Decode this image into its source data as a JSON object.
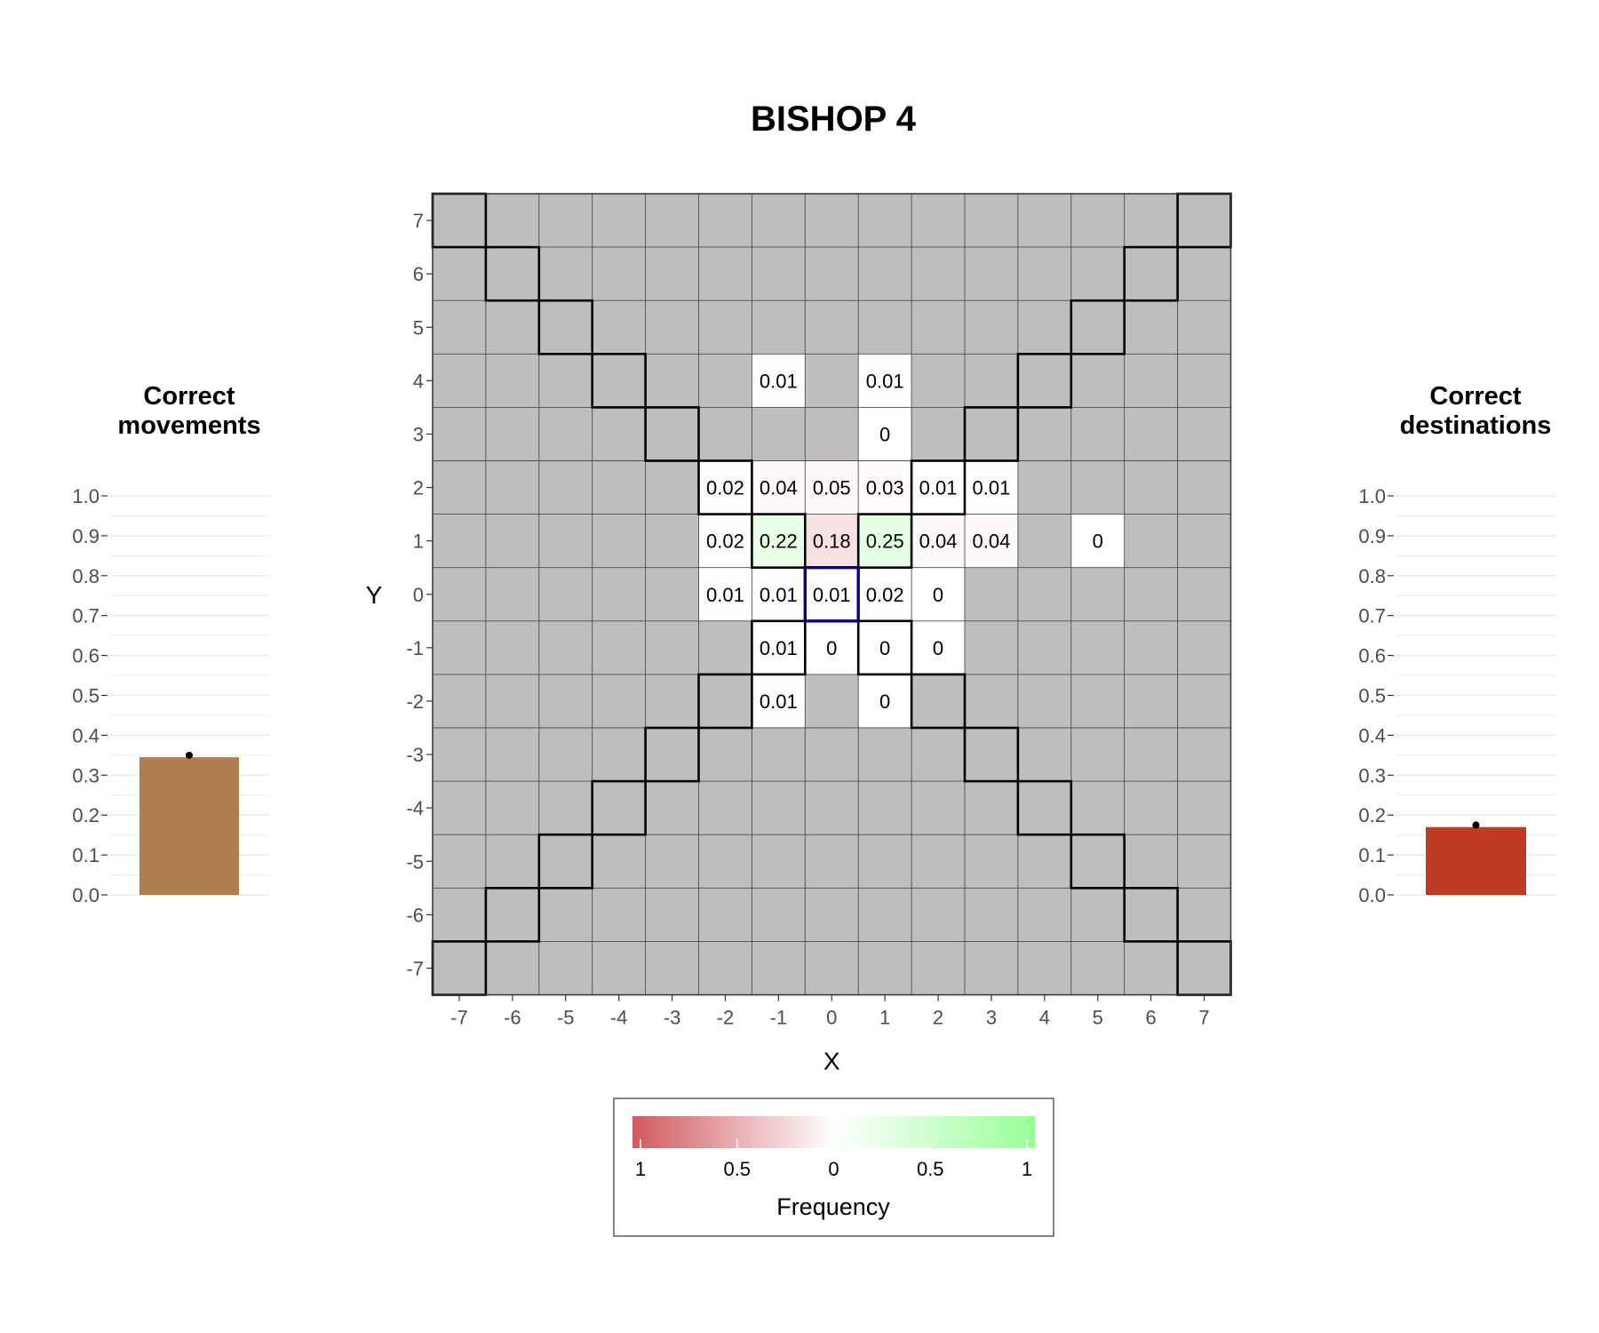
{
  "title": "BISHOP 4",
  "chart_data": [
    {
      "type": "heatmap",
      "piece": "BISHOP 4",
      "xlabel": "X",
      "ylabel": "Y",
      "x_ticks": [
        "-7",
        "-6",
        "-5",
        "-4",
        "-3",
        "-2",
        "-1",
        "0",
        "1",
        "2",
        "3",
        "4",
        "5",
        "6",
        "7"
      ],
      "y_ticks": [
        "-7",
        "-6",
        "-5",
        "-4",
        "-3",
        "-2",
        "-1",
        "0",
        "1",
        "2",
        "3",
        "4",
        "5",
        "6",
        "7"
      ],
      "xlim": [
        -7,
        7
      ],
      "ylim": [
        -7,
        7
      ],
      "background_color": "#bebebe",
      "origin_cell": {
        "x": 0,
        "y": 0,
        "outline_color": "#00008b"
      },
      "cells": [
        {
          "x": -1,
          "y": 4,
          "value": 0.01,
          "label": "0.01",
          "correct": false
        },
        {
          "x": 1,
          "y": 4,
          "value": 0.01,
          "label": "0.01",
          "correct": false
        },
        {
          "x": 1,
          "y": 3,
          "value": 0.002,
          "label": "0",
          "correct": false
        },
        {
          "x": -2,
          "y": 2,
          "value": 0.02,
          "label": "0.02",
          "correct": true
        },
        {
          "x": -1,
          "y": 2,
          "value": 0.04,
          "label": "0.04",
          "correct": false
        },
        {
          "x": 0,
          "y": 2,
          "value": 0.05,
          "label": "0.05",
          "correct": false
        },
        {
          "x": 1,
          "y": 2,
          "value": 0.03,
          "label": "0.03",
          "correct": false
        },
        {
          "x": 2,
          "y": 2,
          "value": 0.01,
          "label": "0.01",
          "correct": true
        },
        {
          "x": 3,
          "y": 2,
          "value": 0.01,
          "label": "0.01",
          "correct": false
        },
        {
          "x": -2,
          "y": 1,
          "value": 0.02,
          "label": "0.02",
          "correct": false
        },
        {
          "x": -1,
          "y": 1,
          "value": 0.22,
          "label": "0.22",
          "correct": true
        },
        {
          "x": 0,
          "y": 1,
          "value": 0.18,
          "label": "0.18",
          "correct": false
        },
        {
          "x": 1,
          "y": 1,
          "value": 0.25,
          "label": "0.25",
          "correct": true
        },
        {
          "x": 2,
          "y": 1,
          "value": 0.04,
          "label": "0.04",
          "correct": false
        },
        {
          "x": 3,
          "y": 1,
          "value": 0.04,
          "label": "0.04",
          "correct": false
        },
        {
          "x": 5,
          "y": 1,
          "value": 0.002,
          "label": "0",
          "correct": false
        },
        {
          "x": -2,
          "y": 0,
          "value": 0.01,
          "label": "0.01",
          "correct": false
        },
        {
          "x": -1,
          "y": 0,
          "value": 0.01,
          "label": "0.01",
          "correct": false
        },
        {
          "x": 0,
          "y": 0,
          "value": 0.01,
          "label": "0.01",
          "correct": false
        },
        {
          "x": 1,
          "y": 0,
          "value": 0.02,
          "label": "0.02",
          "correct": false
        },
        {
          "x": 2,
          "y": 0,
          "value": 0.003,
          "label": "0",
          "correct": false
        },
        {
          "x": -1,
          "y": -1,
          "value": 0.01,
          "label": "0.01",
          "correct": true
        },
        {
          "x": 0,
          "y": -1,
          "value": 0.003,
          "label": "0",
          "correct": false
        },
        {
          "x": 1,
          "y": -1,
          "value": 0.002,
          "label": "0",
          "correct": true
        },
        {
          "x": 2,
          "y": -1,
          "value": 0.003,
          "label": "0",
          "correct": false
        },
        {
          "x": -1,
          "y": -2,
          "value": 0.01,
          "label": "0.01",
          "correct": false
        },
        {
          "x": 1,
          "y": -2,
          "value": 0.003,
          "label": "0",
          "correct": false
        }
      ],
      "color_scale": {
        "incorrect_color": "#d0595f",
        "neutral_color": "#ffffff",
        "correct_color": "#98ff98"
      }
    },
    {
      "type": "bar",
      "title": "Correct\nmovements",
      "title_lines": [
        "Correct",
        "movements"
      ],
      "values": [
        0.345
      ],
      "point": 0.35,
      "color": "#b07d4e",
      "ylim": [
        0,
        1
      ],
      "y_ticks": [
        "0.0",
        "0.1",
        "0.2",
        "0.3",
        "0.4",
        "0.5",
        "0.6",
        "0.7",
        "0.8",
        "0.9",
        "1.0"
      ]
    },
    {
      "type": "bar",
      "title": "Correct\ndestinations",
      "title_lines": [
        "Correct",
        "destinations"
      ],
      "values": [
        0.17
      ],
      "point": 0.175,
      "color": "#c03a22",
      "ylim": [
        0,
        1
      ],
      "y_ticks": [
        "0.0",
        "0.1",
        "0.2",
        "0.3",
        "0.4",
        "0.5",
        "0.6",
        "0.7",
        "0.8",
        "0.9",
        "1.0"
      ]
    }
  ],
  "legend": {
    "title": "Frequency",
    "ticks": [
      "1",
      "0.5",
      "0",
      "0.5",
      "1"
    ],
    "colors": [
      "#d0595f",
      "#ffffff",
      "#98ff98"
    ]
  }
}
